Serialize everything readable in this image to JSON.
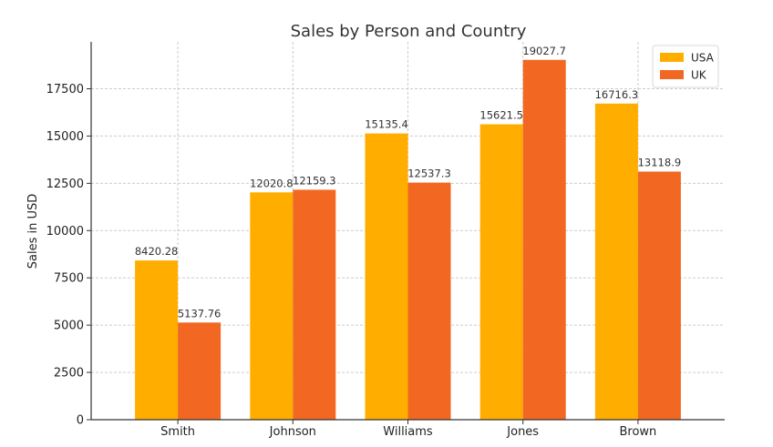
{
  "chart_data": {
    "type": "bar",
    "title": "Sales by Person and Country",
    "xlabel": "",
    "ylabel": "Sales in USD",
    "categories": [
      "Smith",
      "Johnson",
      "Williams",
      "Jones",
      "Brown"
    ],
    "series": [
      {
        "name": "USA",
        "color": "#FFAE00",
        "values": [
          8420.28,
          12020.8,
          15135.4,
          15621.5,
          16716.3
        ],
        "labels": [
          "8420.28",
          "12020.8",
          "15135.4",
          "15621.5",
          "16716.3"
        ]
      },
      {
        "name": "UK",
        "color": "#F26722",
        "values": [
          5137.76,
          12159.3,
          12537.3,
          19027.7,
          13118.9
        ],
        "labels": [
          "5137.76",
          "12159.3",
          "12537.3",
          "19027.7",
          "13118.9"
        ]
      }
    ],
    "ylim": [
      0,
      19979
    ],
    "yticks": [
      0,
      2500,
      5000,
      7500,
      10000,
      12500,
      15000,
      17500
    ],
    "grid": true,
    "legend_position": "top-right"
  }
}
